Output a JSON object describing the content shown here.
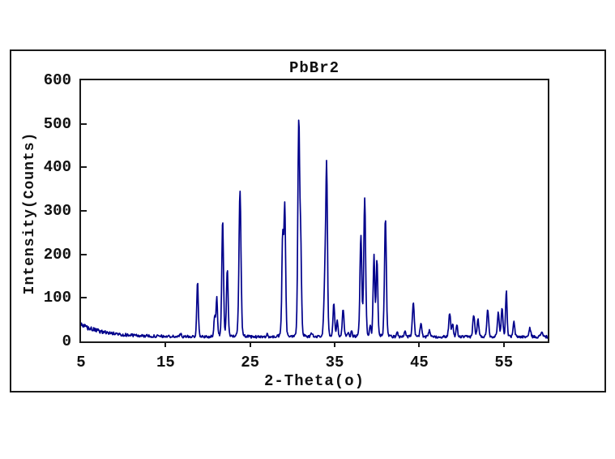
{
  "window": {
    "background": "#ffffff",
    "border_color": "#1a1a1a"
  },
  "chart_data": {
    "type": "line",
    "title": "PbBr2",
    "xlabel": "2-Theta(o)",
    "ylabel": "Intensity(Counts)",
    "legend": "none",
    "grid": "off",
    "line_color": "#00008B",
    "frame_color": "#1a1a1a",
    "x_axis": {
      "min": 5,
      "max": 60.2,
      "ticks": [
        5,
        15,
        25,
        35,
        45,
        55
      ]
    },
    "y_axis": {
      "min": 0,
      "max": 600,
      "ticks": [
        0,
        100,
        200,
        300,
        400,
        500,
        600
      ]
    },
    "background_curve": {
      "flat": 10.5,
      "decay_amplitude": 27,
      "decay_rate": 3.0,
      "noise_amplitude": 3.0,
      "extra_noise_left": 2.2
    },
    "peaks": [
      {
        "two_theta": 16.8,
        "intensity": 17,
        "width": 0.1
      },
      {
        "two_theta": 18.78,
        "intensity": 140,
        "width": 0.09
      },
      {
        "two_theta": 20.8,
        "intensity": 57,
        "width": 0.08
      },
      {
        "two_theta": 21.05,
        "intensity": 100,
        "width": 0.09
      },
      {
        "two_theta": 21.75,
        "intensity": 283,
        "width": 0.1
      },
      {
        "two_theta": 22.3,
        "intensity": 166,
        "width": 0.1
      },
      {
        "two_theta": 23.8,
        "intensity": 349,
        "width": 0.12
      },
      {
        "two_theta": 27.0,
        "intensity": 16,
        "width": 0.1
      },
      {
        "two_theta": 28.85,
        "intensity": 240,
        "width": 0.1
      },
      {
        "two_theta": 29.1,
        "intensity": 307,
        "width": 0.1
      },
      {
        "two_theta": 30.75,
        "intensity": 497,
        "width": 0.11
      },
      {
        "two_theta": 30.98,
        "intensity": 205,
        "width": 0.1
      },
      {
        "two_theta": 32.3,
        "intensity": 20,
        "width": 0.1
      },
      {
        "two_theta": 33.85,
        "intensity": 142,
        "width": 0.12
      },
      {
        "two_theta": 34.05,
        "intensity": 379,
        "width": 0.1
      },
      {
        "two_theta": 34.9,
        "intensity": 87,
        "width": 0.1
      },
      {
        "two_theta": 35.3,
        "intensity": 50,
        "width": 0.09
      },
      {
        "two_theta": 36.0,
        "intensity": 75,
        "width": 0.1
      },
      {
        "two_theta": 36.6,
        "intensity": 22,
        "width": 0.08
      },
      {
        "two_theta": 37.0,
        "intensity": 26,
        "width": 0.08
      },
      {
        "two_theta": 38.1,
        "intensity": 242,
        "width": 0.11
      },
      {
        "two_theta": 38.55,
        "intensity": 330,
        "width": 0.11
      },
      {
        "two_theta": 39.2,
        "intensity": 36,
        "width": 0.08
      },
      {
        "two_theta": 39.65,
        "intensity": 196,
        "width": 0.1
      },
      {
        "two_theta": 40.0,
        "intensity": 186,
        "width": 0.1
      },
      {
        "two_theta": 41.0,
        "intensity": 284,
        "width": 0.11
      },
      {
        "two_theta": 42.4,
        "intensity": 22,
        "width": 0.09
      },
      {
        "two_theta": 43.3,
        "intensity": 24,
        "width": 0.09
      },
      {
        "two_theta": 44.3,
        "intensity": 88,
        "width": 0.11
      },
      {
        "two_theta": 45.2,
        "intensity": 42,
        "width": 0.1
      },
      {
        "two_theta": 46.2,
        "intensity": 24,
        "width": 0.09
      },
      {
        "two_theta": 48.6,
        "intensity": 64,
        "width": 0.11
      },
      {
        "two_theta": 48.95,
        "intensity": 40,
        "width": 0.09
      },
      {
        "two_theta": 49.45,
        "intensity": 37,
        "width": 0.09
      },
      {
        "two_theta": 51.45,
        "intensity": 61,
        "width": 0.11
      },
      {
        "two_theta": 51.95,
        "intensity": 51,
        "width": 0.1
      },
      {
        "two_theta": 53.1,
        "intensity": 75,
        "width": 0.11
      },
      {
        "two_theta": 54.35,
        "intensity": 66,
        "width": 0.11
      },
      {
        "two_theta": 54.8,
        "intensity": 78,
        "width": 0.1
      },
      {
        "two_theta": 55.3,
        "intensity": 117,
        "width": 0.09
      },
      {
        "two_theta": 56.2,
        "intensity": 44,
        "width": 0.1
      },
      {
        "two_theta": 58.1,
        "intensity": 30,
        "width": 0.11
      },
      {
        "two_theta": 59.5,
        "intensity": 22,
        "width": 0.12
      }
    ]
  }
}
